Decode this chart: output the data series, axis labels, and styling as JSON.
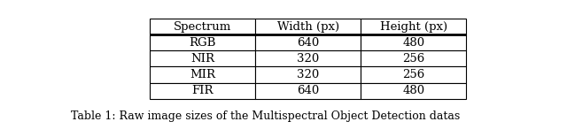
{
  "columns": [
    "Spectrum",
    "Width (px)",
    "Height (px)"
  ],
  "rows": [
    [
      "RGB",
      "640",
      "480"
    ],
    [
      "NIR",
      "320",
      "256"
    ],
    [
      "MIR",
      "320",
      "256"
    ],
    [
      "FIR",
      "640",
      "480"
    ]
  ],
  "caption": "Table 1: Raw image sizes of the Multispectral Object Detection datas",
  "background_color": "#ffffff",
  "cell_bg": "#ffffff",
  "text_color": "#000000",
  "line_color": "#000000",
  "font_size": 9.5,
  "caption_font_size": 9.0
}
